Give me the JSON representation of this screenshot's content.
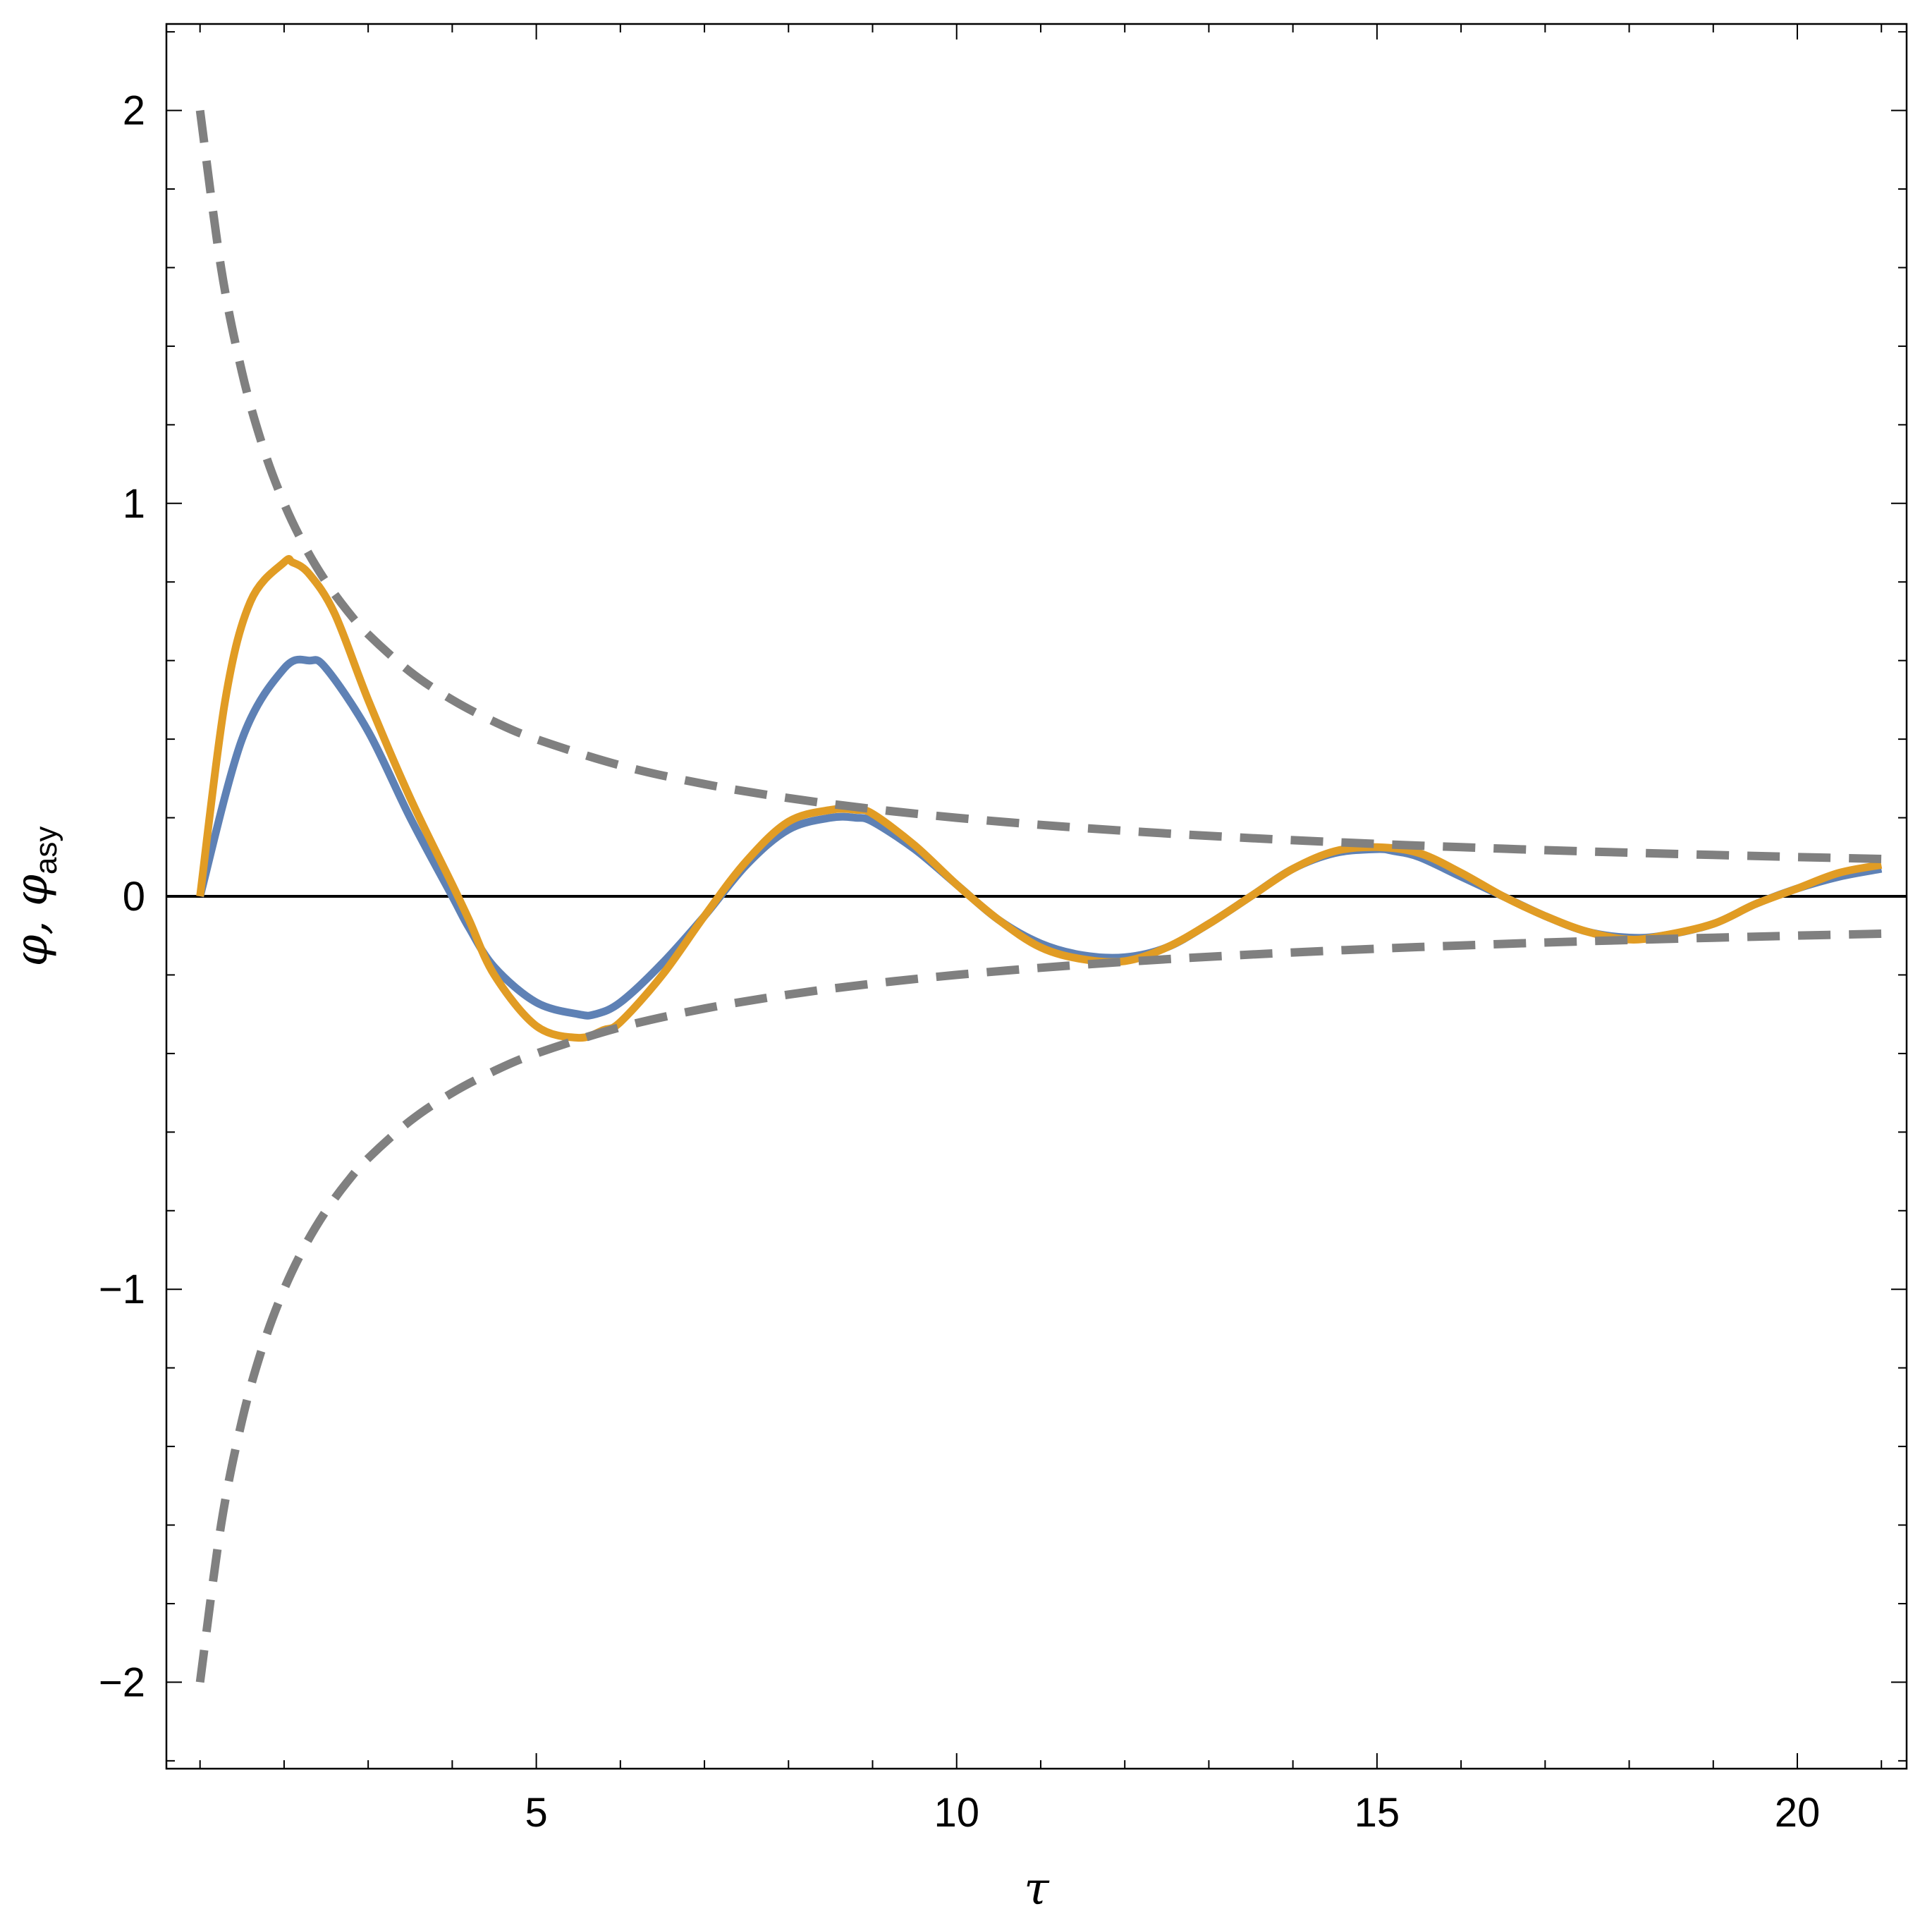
{
  "chart_data": {
    "type": "line",
    "xlabel": "τ",
    "ylabel": "φ, φasy",
    "ylabel_parts": {
      "main": "φ, φ",
      "sub": "asy"
    },
    "xlim": [
      0.6,
      21.3
    ],
    "ylim": [
      -2.22,
      2.22
    ],
    "x_ticks": [
      5,
      10,
      15,
      20
    ],
    "x_tick_labels": [
      "5",
      "10",
      "15",
      "20"
    ],
    "y_ticks": [
      -2,
      -1,
      0,
      1,
      2
    ],
    "y_tick_labels": [
      "−2",
      "−1",
      "0",
      "1",
      "2"
    ],
    "grid": false,
    "zero_line": true,
    "series": [
      {
        "color": "#5e81b5",
        "style": "solid",
        "x": [
          1.0,
          1.5,
          2.0,
          2.3,
          2.5,
          3.0,
          3.5,
          4.0,
          4.2,
          4.5,
          5.0,
          5.5,
          5.7,
          6.0,
          6.5,
          7.0,
          7.5,
          8.0,
          8.5,
          8.8,
          9.0,
          9.5,
          10.0,
          10.5,
          11.0,
          11.5,
          12.0,
          12.5,
          13.0,
          13.5,
          14.0,
          14.5,
          15.0,
          15.2,
          15.5,
          16.0,
          16.5,
          17.0,
          17.5,
          18.0,
          18.4,
          19.0,
          19.5,
          20.0,
          20.5,
          21.0
        ],
        "y": [
          0.0,
          0.4,
          0.58,
          0.6,
          0.58,
          0.42,
          0.2,
          0.0,
          -0.08,
          -0.18,
          -0.27,
          -0.3,
          -0.3,
          -0.27,
          -0.17,
          -0.05,
          0.08,
          0.17,
          0.2,
          0.2,
          0.19,
          0.12,
          0.03,
          -0.06,
          -0.12,
          -0.15,
          -0.155,
          -0.13,
          -0.07,
          0.0,
          0.07,
          0.11,
          0.12,
          0.115,
          0.1,
          0.05,
          0.0,
          -0.05,
          -0.09,
          -0.105,
          -0.1,
          -0.07,
          -0.02,
          0.02,
          0.05,
          0.07
        ]
      },
      {
        "color": "#e19c24",
        "style": "solid",
        "x": [
          1.0,
          1.3,
          1.6,
          2.0,
          2.1,
          2.3,
          2.6,
          3.0,
          3.5,
          4.0,
          4.2,
          4.5,
          5.0,
          5.5,
          5.8,
          6.0,
          6.5,
          7.0,
          7.5,
          8.0,
          8.5,
          8.8,
          9.0,
          9.5,
          10.0,
          10.5,
          11.0,
          11.5,
          12.0,
          12.5,
          13.0,
          13.5,
          14.0,
          14.5,
          15.0,
          15.5,
          16.0,
          16.5,
          17.0,
          17.5,
          18.0,
          18.4,
          19.0,
          19.5,
          20.0,
          20.5,
          21.0
        ],
        "y": [
          0.0,
          0.5,
          0.75,
          0.85,
          0.85,
          0.82,
          0.72,
          0.5,
          0.25,
          0.03,
          -0.06,
          -0.2,
          -0.33,
          -0.36,
          -0.34,
          -0.32,
          -0.2,
          -0.05,
          0.09,
          0.19,
          0.22,
          0.22,
          0.21,
          0.13,
          0.03,
          -0.06,
          -0.13,
          -0.16,
          -0.165,
          -0.13,
          -0.07,
          0.0,
          0.07,
          0.115,
          0.125,
          0.11,
          0.06,
          0.0,
          -0.05,
          -0.09,
          -0.11,
          -0.1,
          -0.07,
          -0.02,
          0.02,
          0.06,
          0.08
        ]
      },
      {
        "color": "#808080",
        "style": "dashed",
        "x": [
          1.0,
          1.25,
          1.5,
          1.75,
          2.0,
          2.25,
          2.5,
          2.75,
          3.0,
          3.5,
          4.0,
          4.5,
          5.0,
          6.0,
          7.0,
          8.0,
          9.0,
          10.0,
          11.0,
          12.0,
          13.0,
          14.0,
          15.0,
          16.0,
          17.0,
          18.0,
          19.0,
          20.0,
          21.0
        ],
        "y": [
          2.0,
          1.6,
          1.3333,
          1.1429,
          1.0,
          0.8889,
          0.8,
          0.7273,
          0.6667,
          0.5714,
          0.5,
          0.4444,
          0.4,
          0.3333,
          0.2857,
          0.25,
          0.2222,
          0.2,
          0.1818,
          0.1667,
          0.1538,
          0.1429,
          0.1333,
          0.125,
          0.1176,
          0.1111,
          0.1053,
          0.1,
          0.0952
        ]
      },
      {
        "color": "#808080",
        "style": "dashed",
        "x": [
          1.0,
          1.25,
          1.5,
          1.75,
          2.0,
          2.25,
          2.5,
          2.75,
          3.0,
          3.5,
          4.0,
          4.5,
          5.0,
          6.0,
          7.0,
          8.0,
          9.0,
          10.0,
          11.0,
          12.0,
          13.0,
          14.0,
          15.0,
          16.0,
          17.0,
          18.0,
          19.0,
          20.0,
          21.0
        ],
        "y": [
          -2.0,
          -1.6,
          -1.3333,
          -1.1429,
          -1.0,
          -0.8889,
          -0.8,
          -0.7273,
          -0.6667,
          -0.5714,
          -0.5,
          -0.4444,
          -0.4,
          -0.3333,
          -0.2857,
          -0.25,
          -0.2222,
          -0.2,
          -0.1818,
          -0.1667,
          -0.1538,
          -0.1429,
          -0.1333,
          -0.125,
          -0.1176,
          -0.1111,
          -0.1053,
          -0.1,
          -0.0952
        ]
      }
    ]
  }
}
